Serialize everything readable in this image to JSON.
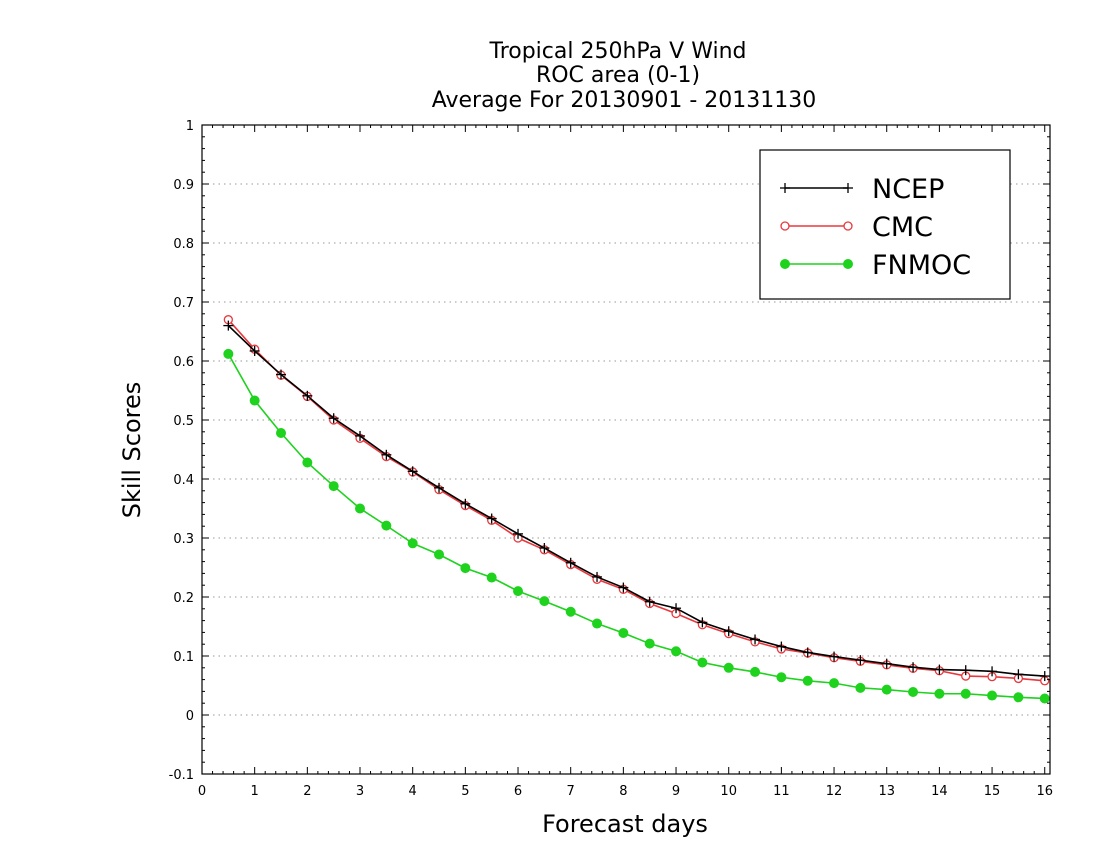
{
  "chart_data": {
    "type": "line",
    "title_lines": [
      "Tropical 250hPa V Wind",
      "ROC area (0-1)",
      "Average For 20130901 - 20131130"
    ],
    "xlabel": "Forecast days",
    "ylabel": "Skill Scores",
    "xlim": [
      0,
      16.1
    ],
    "ylim": [
      -0.1,
      1
    ],
    "x_ticks": [
      0,
      1,
      2,
      3,
      4,
      5,
      6,
      7,
      8,
      9,
      10,
      11,
      12,
      13,
      14,
      15,
      16
    ],
    "y_ticks": [
      -0.1,
      0,
      0.1,
      0.2,
      0.3,
      0.4,
      0.5,
      0.6,
      0.7,
      0.8,
      0.9,
      1
    ],
    "y_tick_labels": [
      "-0.1",
      "0",
      "0.1",
      "0.2",
      "0.3",
      "0.4",
      "0.5",
      "0.6",
      "0.7",
      "0.8",
      "0.9",
      "1"
    ],
    "grid": "horizontal dotted",
    "legend_position": "top-right",
    "x": [
      0.5,
      1,
      1.5,
      2,
      2.5,
      3,
      3.5,
      4,
      4.5,
      5,
      5.5,
      6,
      6.5,
      7,
      7.5,
      8,
      8.5,
      9,
      9.5,
      10,
      10.5,
      11,
      11.5,
      12,
      12.5,
      13,
      13.5,
      14,
      14.5,
      15,
      15.5,
      16
    ],
    "series": [
      {
        "name": "NCEP",
        "color": "#000000",
        "marker": "plus",
        "values": [
          0.66,
          0.617,
          0.577,
          0.541,
          0.503,
          0.473,
          0.441,
          0.413,
          0.385,
          0.358,
          0.333,
          0.307,
          0.283,
          0.258,
          0.234,
          0.216,
          0.192,
          0.181,
          0.157,
          0.142,
          0.128,
          0.116,
          0.106,
          0.099,
          0.093,
          0.087,
          0.081,
          0.077,
          0.076,
          0.074,
          0.069,
          0.066
        ]
      },
      {
        "name": "CMC",
        "color": "#e8383d",
        "marker": "open-circle",
        "values": [
          0.67,
          0.62,
          0.576,
          0.54,
          0.5,
          0.469,
          0.438,
          0.412,
          0.382,
          0.355,
          0.33,
          0.3,
          0.28,
          0.255,
          0.23,
          0.213,
          0.189,
          0.172,
          0.153,
          0.138,
          0.124,
          0.112,
          0.105,
          0.097,
          0.091,
          0.085,
          0.079,
          0.075,
          0.066,
          0.065,
          0.062,
          0.058
        ]
      },
      {
        "name": "FNMOC",
        "color": "#1ed21e",
        "marker": "filled-circle",
        "values": [
          0.612,
          0.533,
          0.478,
          0.428,
          0.388,
          0.35,
          0.321,
          0.291,
          0.272,
          0.249,
          0.233,
          0.21,
          0.193,
          0.175,
          0.155,
          0.139,
          0.121,
          0.108,
          0.089,
          0.08,
          0.073,
          0.064,
          0.058,
          0.054,
          0.046,
          0.043,
          0.039,
          0.036,
          0.036,
          0.033,
          0.03,
          0.028
        ]
      }
    ]
  }
}
